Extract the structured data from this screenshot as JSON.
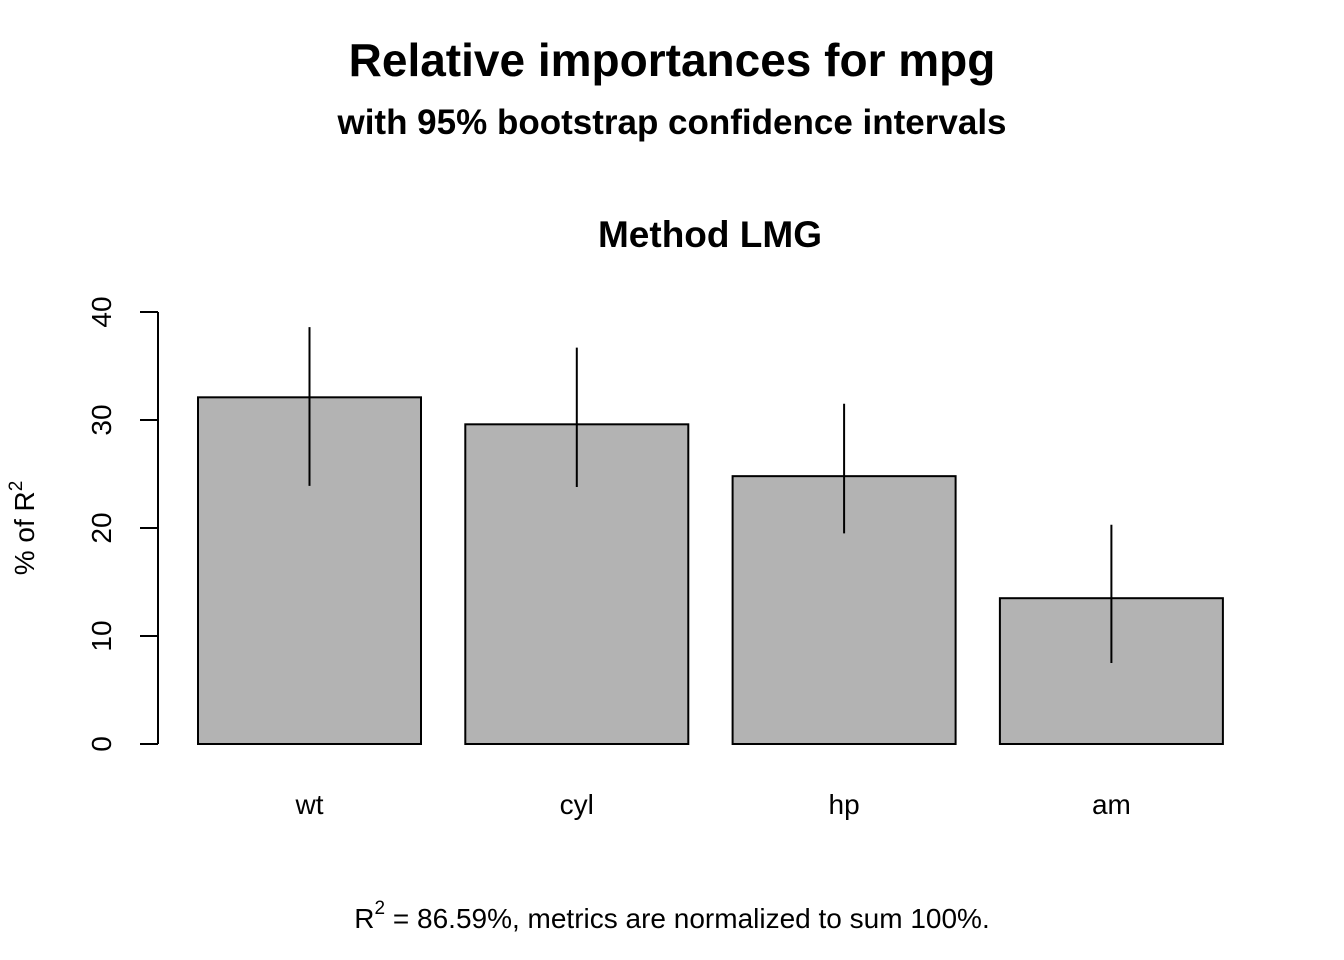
{
  "chart_data": {
    "type": "bar",
    "title": "Relative importances for mpg",
    "subtitle": "with 95% bootstrap confidence intervals",
    "panel_title": "Method LMG",
    "ylabel": "% of R",
    "ylabel_sup": "2",
    "categories": [
      "wt",
      "cyl",
      "hp",
      "am"
    ],
    "values": [
      32.1,
      29.6,
      24.8,
      13.5
    ],
    "ci_lower": [
      23.9,
      23.8,
      19.5,
      7.5
    ],
    "ci_upper": [
      38.6,
      36.7,
      31.5,
      20.3
    ],
    "ylim": [
      0,
      40
    ],
    "yticks": [
      "0",
      "10",
      "20",
      "30",
      "40"
    ],
    "bar_fill": "#b3b3b3",
    "grid": false,
    "footer": {
      "r": "R",
      "sup": "2",
      "eq": " = ",
      "text": "86.59%, metrics are normalized to sum 100%."
    }
  }
}
